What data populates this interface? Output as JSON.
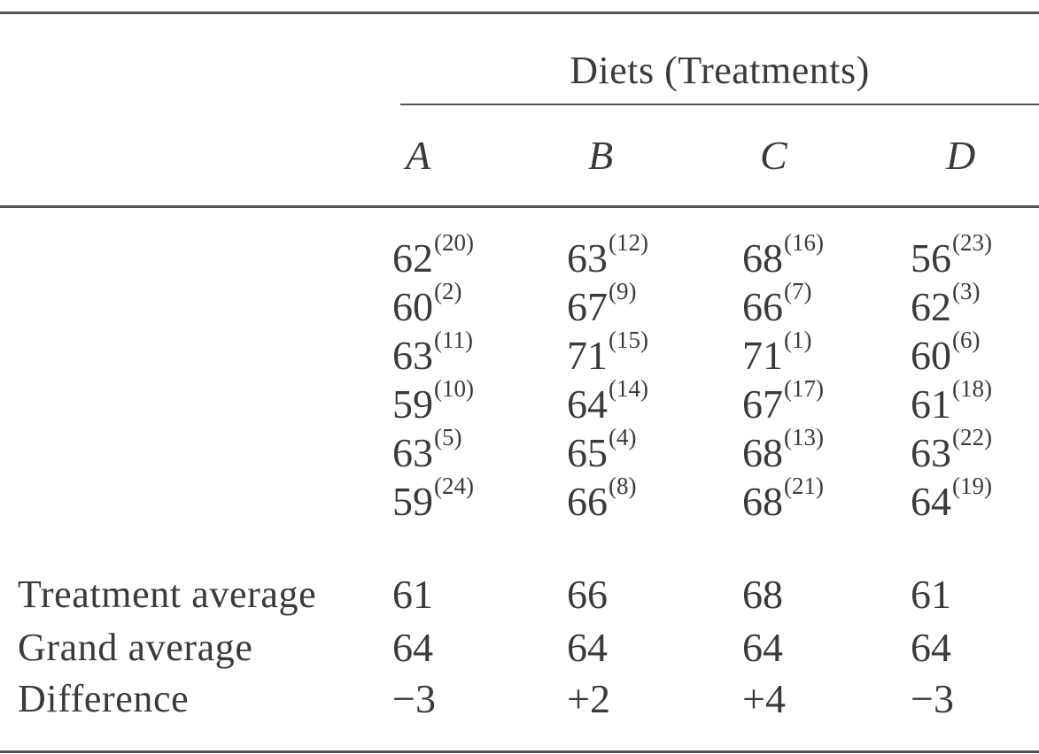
{
  "table": {
    "group_header": "Diets (Treatments)",
    "columns": [
      "A",
      "B",
      "C",
      "D"
    ],
    "observations": [
      [
        {
          "v": "62",
          "s": "(20)"
        },
        {
          "v": "63",
          "s": "(12)"
        },
        {
          "v": "68",
          "s": "(16)"
        },
        {
          "v": "56",
          "s": "(23)"
        }
      ],
      [
        {
          "v": "60",
          "s": "(2)"
        },
        {
          "v": "67",
          "s": "(9)"
        },
        {
          "v": "66",
          "s": "(7)"
        },
        {
          "v": "62",
          "s": "(3)"
        }
      ],
      [
        {
          "v": "63",
          "s": "(11)"
        },
        {
          "v": "71",
          "s": "(15)"
        },
        {
          "v": "71",
          "s": "(1)"
        },
        {
          "v": "60",
          "s": "(6)"
        }
      ],
      [
        {
          "v": "59",
          "s": "(10)"
        },
        {
          "v": "64",
          "s": "(14)"
        },
        {
          "v": "67",
          "s": "(17)"
        },
        {
          "v": "61",
          "s": "(18)"
        }
      ],
      [
        {
          "v": "63",
          "s": "(5)"
        },
        {
          "v": "65",
          "s": "(4)"
        },
        {
          "v": "68",
          "s": "(13)"
        },
        {
          "v": "63",
          "s": "(22)"
        }
      ],
      [
        {
          "v": "59",
          "s": "(24)"
        },
        {
          "v": "66",
          "s": "(8)"
        },
        {
          "v": "68",
          "s": "(21)"
        },
        {
          "v": "64",
          "s": "(19)"
        }
      ]
    ],
    "summary": [
      {
        "label": "Treatment average",
        "values": [
          "61",
          "66",
          "68",
          "61"
        ]
      },
      {
        "label": "Grand average",
        "values": [
          "64",
          "64",
          "64",
          "64"
        ]
      },
      {
        "label": "Difference",
        "values": [
          "−3",
          "+2",
          "+4",
          "−3"
        ]
      }
    ]
  }
}
